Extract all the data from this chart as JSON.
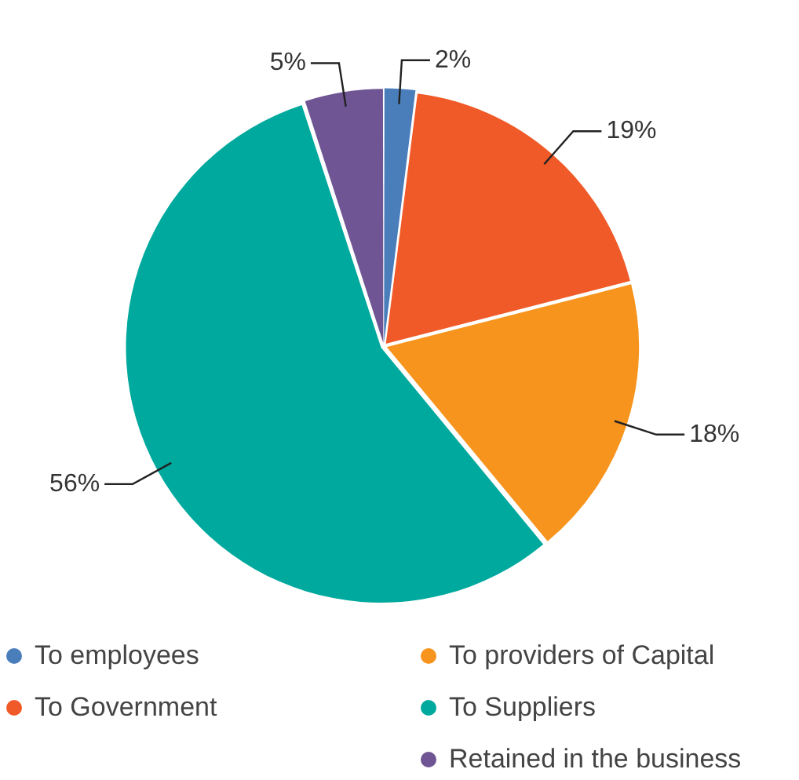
{
  "chart_data": {
    "type": "pie",
    "categories": [
      "To employees",
      "To Government",
      "To providers of Capital",
      "To Suppliers",
      "Retained in the business"
    ],
    "values": [
      2,
      19,
      18,
      56,
      5
    ],
    "colors": [
      "#4a7ebb",
      "#f05a28",
      "#f7941d",
      "#00a99d",
      "#6f5593"
    ],
    "value_labels": [
      "2%",
      "19%",
      "18%",
      "56%",
      "5%"
    ],
    "legend": "bottom"
  }
}
